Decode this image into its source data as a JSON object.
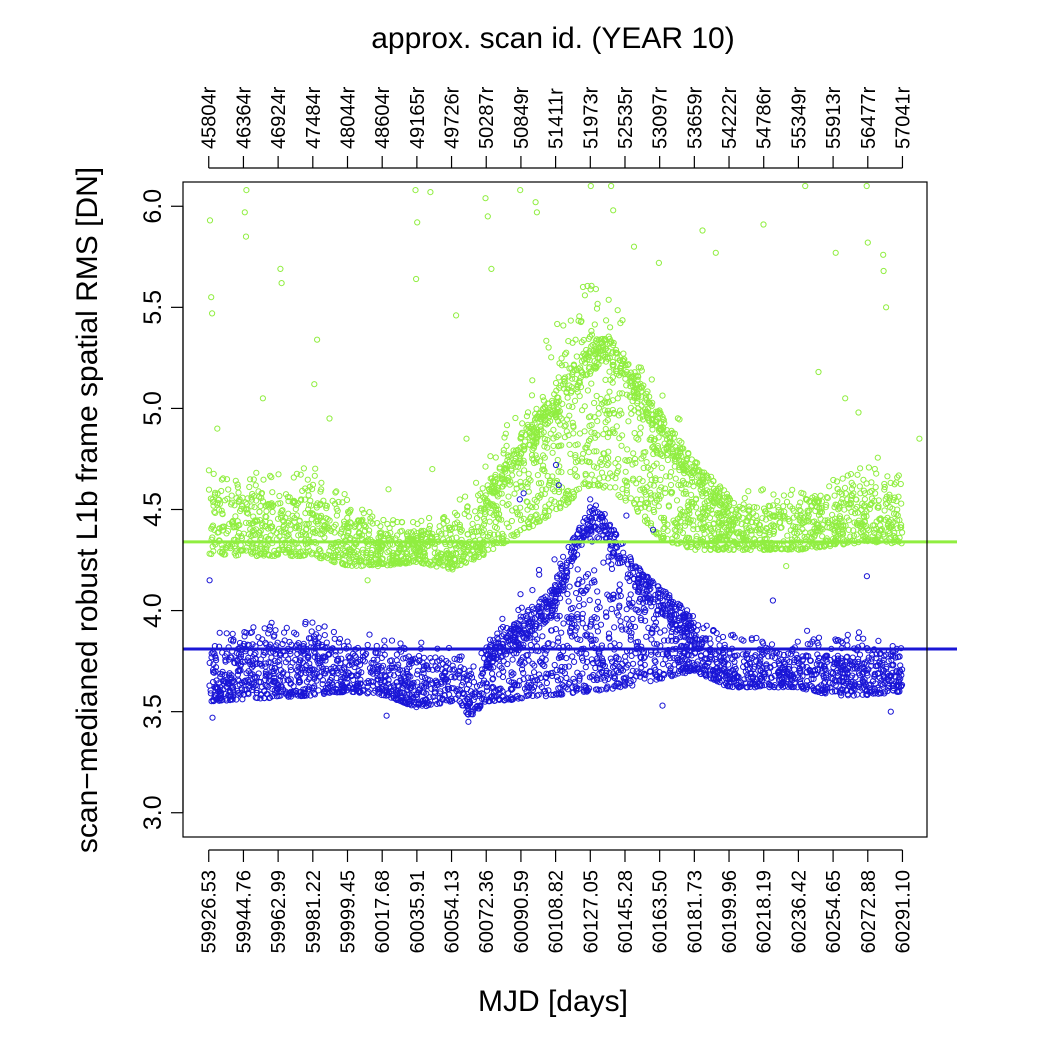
{
  "chart_data": {
    "type": "scatter",
    "title": "approx. scan id. (YEAR 10)",
    "xlabel": "MJD [days]",
    "ylabel": "scan−medianed robust L1b frame spatial RMS [DN]",
    "xlim": [
      59913.0,
      60304.0
    ],
    "ylim": [
      2.88,
      6.12
    ],
    "grid": false,
    "yticks": [
      3.0,
      3.5,
      4.0,
      4.5,
      5.0,
      5.5,
      6.0
    ],
    "ytick_labels": [
      "3.0",
      "3.5",
      "4.0",
      "4.5",
      "5.0",
      "5.5",
      "6.0"
    ],
    "xticks": [
      59926.53,
      59944.76,
      59962.99,
      59981.22,
      59999.45,
      60017.68,
      60035.91,
      60054.13,
      60072.36,
      60090.59,
      60108.82,
      60127.05,
      60145.28,
      60163.5,
      60181.73,
      60199.96,
      60218.19,
      60236.42,
      60254.65,
      60272.88,
      60291.1
    ],
    "xtick_labels": [
      "59926.53",
      "59944.76",
      "59962.99",
      "59981.22",
      "59999.45",
      "60017.68",
      "60035.91",
      "60054.13",
      "60072.36",
      "60090.59",
      "60108.82",
      "60127.05",
      "60145.28",
      "60163.50",
      "60181.73",
      "60199.96",
      "60218.19",
      "60236.42",
      "60254.65",
      "60272.88",
      "60291.10"
    ],
    "top_tick_labels": [
      "45804r",
      "46364r",
      "46924r",
      "47484r",
      "48044r",
      "48604r",
      "49165r",
      "49726r",
      "50287r",
      "50849r",
      "51411r",
      "51973r",
      "52535r",
      "53097r",
      "53659r",
      "54222r",
      "54786r",
      "55349r",
      "55913r",
      "56477r",
      "57041r"
    ],
    "series": [
      {
        "color": "#90ee40",
        "median": 4.34,
        "envelope": {
          "x": [
            59926.5,
            59945,
            59963,
            59981,
            60000,
            60018,
            60036,
            60054,
            60072,
            60090,
            60108,
            60118,
            60127,
            60136,
            60145,
            60155,
            60163,
            60172,
            60182,
            60200,
            60218,
            60236,
            60254,
            60273,
            60291
          ],
          "lower": [
            4.28,
            4.27,
            4.27,
            4.27,
            4.22,
            4.22,
            4.24,
            4.2,
            4.28,
            4.38,
            4.48,
            4.55,
            4.62,
            4.6,
            4.55,
            4.45,
            4.36,
            4.33,
            4.3,
            4.3,
            4.3,
            4.3,
            4.32,
            4.34,
            4.33
          ],
          "upper": [
            4.72,
            4.68,
            4.7,
            4.72,
            4.58,
            4.45,
            4.45,
            4.5,
            4.72,
            5.05,
            5.42,
            5.6,
            5.62,
            5.55,
            5.45,
            5.25,
            5.1,
            5.0,
            4.72,
            4.58,
            4.6,
            4.62,
            4.68,
            4.78,
            4.72
          ]
        },
        "upper_track": {
          "x": [
            60072,
            60090,
            60108,
            60118,
            60127,
            60136,
            60145,
            60155,
            60163,
            60172,
            60182,
            60200
          ],
          "y": [
            4.55,
            4.78,
            5.0,
            5.15,
            5.25,
            5.3,
            5.2,
            5.05,
            4.92,
            4.8,
            4.68,
            4.5
          ]
        },
        "outliers": [
          [
            59927.2,
            5.93
          ],
          [
            59927.8,
            5.55
          ],
          [
            59928.3,
            5.47
          ],
          [
            59945.5,
            5.97
          ],
          [
            59946.3,
            6.08
          ],
          [
            59946.1,
            5.85
          ],
          [
            59964.2,
            5.69
          ],
          [
            59964.8,
            5.62
          ],
          [
            59983.5,
            5.34
          ],
          [
            59982.0,
            5.12
          ],
          [
            60035.2,
            6.08
          ],
          [
            60036.1,
            5.92
          ],
          [
            60035.5,
            5.64
          ],
          [
            60043.0,
            6.07
          ],
          [
            60056.5,
            5.46
          ],
          [
            60072.0,
            6.04
          ],
          [
            60073.2,
            5.95
          ],
          [
            60075.1,
            5.69
          ],
          [
            60090.2,
            6.08
          ],
          [
            60098.3,
            6.02
          ],
          [
            60099.0,
            5.97
          ],
          [
            60127.3,
            6.1
          ],
          [
            60138.0,
            6.1
          ],
          [
            60139.1,
            5.98
          ],
          [
            60150.0,
            5.8
          ],
          [
            60163.1,
            5.72
          ],
          [
            60186.0,
            5.88
          ],
          [
            60193.0,
            5.77
          ],
          [
            60218.1,
            5.91
          ],
          [
            60240.0,
            6.1
          ],
          [
            60256.0,
            5.77
          ],
          [
            60272.3,
            6.1
          ],
          [
            60272.9,
            5.82
          ],
          [
            60281.0,
            5.76
          ],
          [
            60281.2,
            5.68
          ],
          [
            60282.5,
            5.5
          ],
          [
            59931.0,
            4.9
          ],
          [
            59955.0,
            5.05
          ],
          [
            59990.0,
            4.95
          ],
          [
            60010.0,
            4.15
          ],
          [
            60021.0,
            4.6
          ],
          [
            60044.0,
            4.7
          ],
          [
            60062.0,
            4.85
          ],
          [
            60230.0,
            4.22
          ],
          [
            60247.0,
            5.18
          ],
          [
            60261.0,
            5.05
          ],
          [
            60268.0,
            4.98
          ],
          [
            60300.0,
            4.85
          ]
        ]
      },
      {
        "color": "#1a16d6",
        "median": 3.81,
        "envelope": {
          "x": [
            59926.5,
            59945,
            59963,
            59981,
            60000,
            60018,
            60036,
            60054,
            60065,
            60072,
            60090,
            60108,
            60127,
            60145,
            60163,
            60182,
            60200,
            60218,
            60236,
            60254,
            60273,
            60291
          ],
          "lower": [
            3.55,
            3.56,
            3.57,
            3.58,
            3.6,
            3.58,
            3.52,
            3.55,
            3.47,
            3.55,
            3.56,
            3.58,
            3.6,
            3.62,
            3.66,
            3.7,
            3.62,
            3.62,
            3.62,
            3.58,
            3.58,
            3.6
          ],
          "upper": [
            3.88,
            3.92,
            3.95,
            3.95,
            3.9,
            3.87,
            3.85,
            3.82,
            3.75,
            3.85,
            4.08,
            4.3,
            4.38,
            4.28,
            4.12,
            3.95,
            3.88,
            3.88,
            3.85,
            3.88,
            3.9,
            3.86
          ]
        },
        "upper_track": {
          "x": [
            60072,
            60090,
            60108,
            60118,
            60127,
            60136,
            60145,
            60155,
            60163,
            60172,
            60182
          ],
          "y": [
            3.75,
            3.9,
            4.05,
            4.3,
            4.45,
            4.4,
            4.25,
            4.12,
            4.05,
            3.98,
            3.9
          ]
        },
        "outliers": [
          [
            59927.0,
            4.15
          ],
          [
            59928.5,
            3.47
          ],
          [
            60020.0,
            3.48
          ],
          [
            60063.0,
            3.45
          ],
          [
            60090.0,
            4.55
          ],
          [
            60092.0,
            4.58
          ],
          [
            60109.0,
            4.72
          ],
          [
            60110.5,
            4.62
          ],
          [
            60127.0,
            4.55
          ],
          [
            60130.0,
            4.52
          ],
          [
            60146.0,
            4.47
          ],
          [
            60160.0,
            4.4
          ],
          [
            60165.0,
            3.53
          ],
          [
            60208.0,
            3.66
          ],
          [
            60223.0,
            4.05
          ],
          [
            60241.0,
            3.9
          ],
          [
            60272.4,
            4.17
          ],
          [
            60285.0,
            3.5
          ]
        ]
      }
    ]
  }
}
